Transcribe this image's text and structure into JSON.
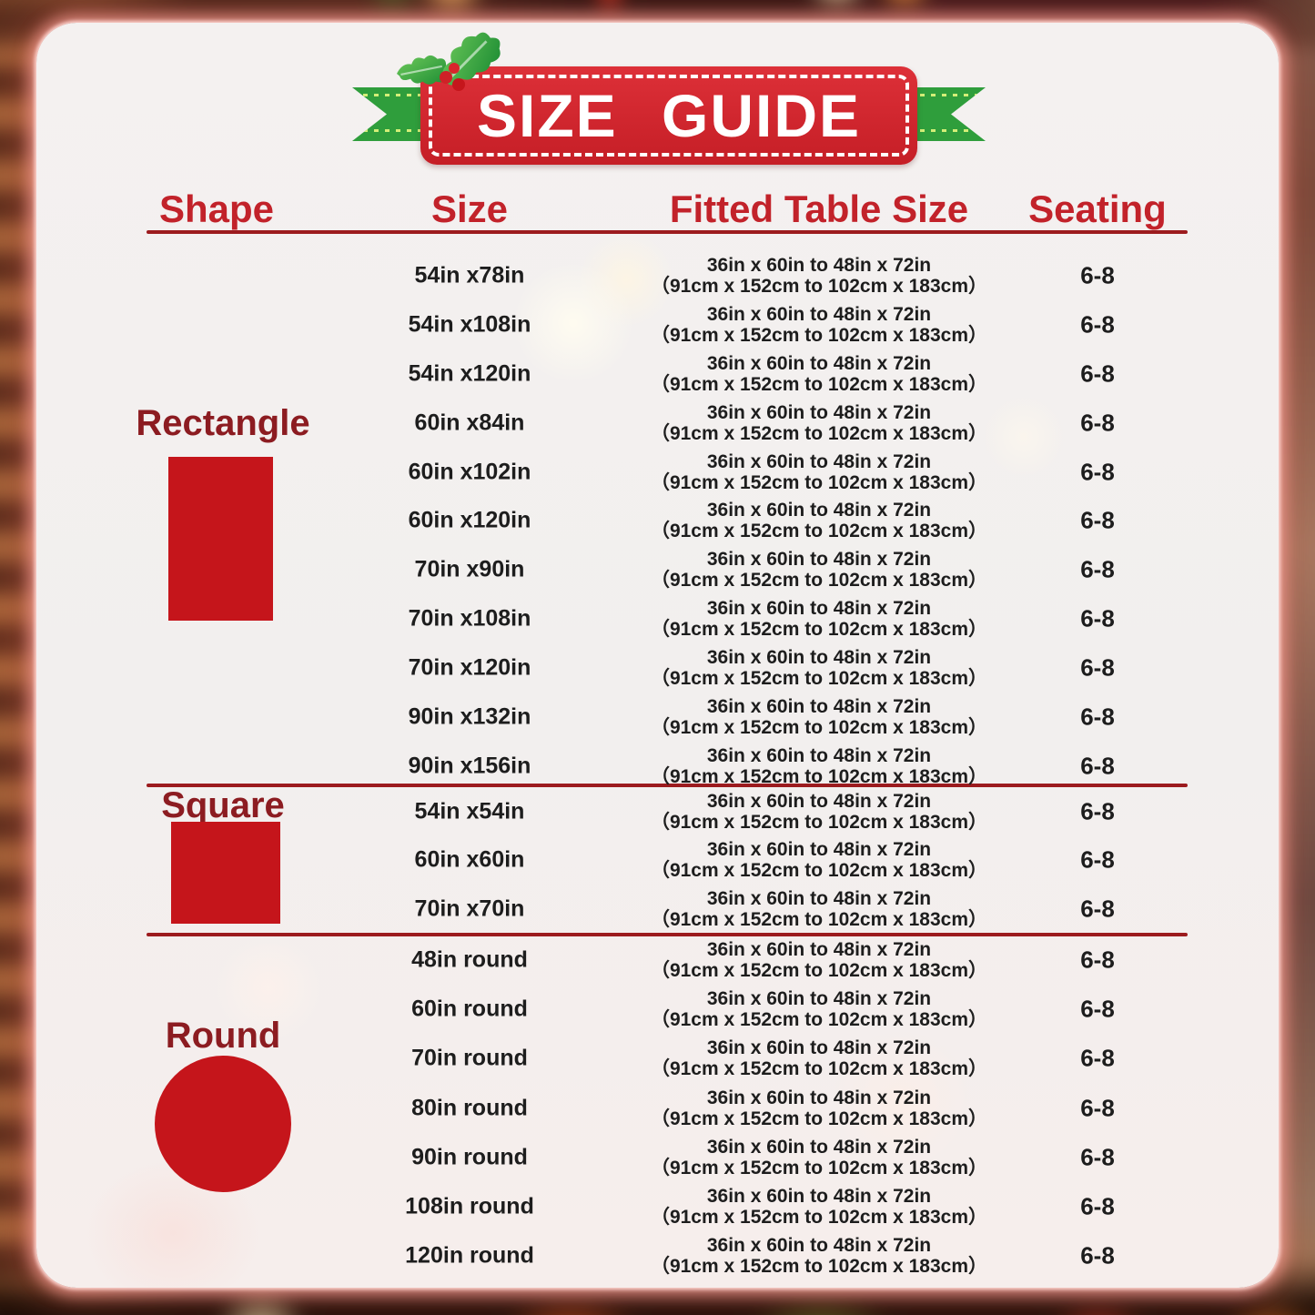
{
  "title": "SIZE GUIDE",
  "columns": [
    "Shape",
    "Size",
    "Fitted Table Size",
    "Seating"
  ],
  "colors": {
    "banner_red": "#d2232a",
    "ribbon_green": "#2f9e3c",
    "header_red": "#c2222a",
    "shape_red": "#c5151b",
    "shape_label_maroon": "#8c1c21",
    "divider_red": "#9c1b1e",
    "row_text": "#1d1d1d"
  },
  "icons": {
    "holly": "holly-icon",
    "rectangle": "rectangle-shape-icon",
    "square": "square-shape-icon",
    "round": "circle-shape-icon"
  },
  "sections": [
    {
      "shape": "Rectangle",
      "icon": "rectangle-shape-icon",
      "rows": [
        {
          "size": "54in x78in",
          "fitted_in": "36in x 60in to 48in x 72in",
          "fitted_cm": "（91cm x 152cm to 102cm x 183cm）",
          "seating": "6-8"
        },
        {
          "size": "54in x108in",
          "fitted_in": "36in x 60in to 48in x 72in",
          "fitted_cm": "（91cm x 152cm to 102cm x 183cm）",
          "seating": "6-8"
        },
        {
          "size": "54in x120in",
          "fitted_in": "36in x 60in to 48in x 72in",
          "fitted_cm": "（91cm x 152cm to 102cm x 183cm）",
          "seating": "6-8"
        },
        {
          "size": "60in x84in",
          "fitted_in": "36in x 60in to 48in x 72in",
          "fitted_cm": "（91cm x 152cm to 102cm x 183cm）",
          "seating": "6-8"
        },
        {
          "size": "60in x102in",
          "fitted_in": "36in x 60in to 48in x 72in",
          "fitted_cm": "（91cm x 152cm to 102cm x 183cm）",
          "seating": "6-8"
        },
        {
          "size": "60in x120in",
          "fitted_in": "36in x 60in to 48in x 72in",
          "fitted_cm": "（91cm x 152cm to 102cm x 183cm）",
          "seating": "6-8"
        },
        {
          "size": "70in x90in",
          "fitted_in": "36in x 60in to 48in x 72in",
          "fitted_cm": "（91cm x 152cm to 102cm x 183cm）",
          "seating": "6-8"
        },
        {
          "size": "70in x108in",
          "fitted_in": "36in x 60in to 48in x 72in",
          "fitted_cm": "（91cm x 152cm to 102cm x 183cm）",
          "seating": "6-8"
        },
        {
          "size": "70in x120in",
          "fitted_in": "36in x 60in to 48in x 72in",
          "fitted_cm": "（91cm x 152cm to 102cm x 183cm）",
          "seating": "6-8"
        },
        {
          "size": "90in x132in",
          "fitted_in": "36in x 60in to 48in x 72in",
          "fitted_cm": "（91cm x 152cm to 102cm x 183cm）",
          "seating": "6-8"
        },
        {
          "size": "90in x156in",
          "fitted_in": "36in x 60in to 48in x 72in",
          "fitted_cm": "（91cm x 152cm to 102cm x 183cm）",
          "seating": "6-8"
        }
      ]
    },
    {
      "shape": "Square",
      "icon": "square-shape-icon",
      "rows": [
        {
          "size": "54in x54in",
          "fitted_in": "36in x 60in to 48in x 72in",
          "fitted_cm": "（91cm x 152cm to 102cm x 183cm）",
          "seating": "6-8"
        },
        {
          "size": "60in x60in",
          "fitted_in": "36in x 60in to 48in x 72in",
          "fitted_cm": "（91cm x 152cm to 102cm x 183cm）",
          "seating": "6-8"
        },
        {
          "size": "70in x70in",
          "fitted_in": "36in x 60in to 48in x 72in",
          "fitted_cm": "（91cm x 152cm to 102cm x 183cm）",
          "seating": "6-8"
        }
      ]
    },
    {
      "shape": "Round",
      "icon": "circle-shape-icon",
      "rows": [
        {
          "size": "48in round",
          "fitted_in": "36in x 60in to 48in x 72in",
          "fitted_cm": "（91cm x 152cm to 102cm x 183cm）",
          "seating": "6-8"
        },
        {
          "size": "60in round",
          "fitted_in": "36in x 60in to 48in x 72in",
          "fitted_cm": "（91cm x 152cm to 102cm x 183cm）",
          "seating": "6-8"
        },
        {
          "size": "70in round",
          "fitted_in": "36in x 60in to 48in x 72in",
          "fitted_cm": "（91cm x 152cm to 102cm x 183cm）",
          "seating": "6-8"
        },
        {
          "size": "80in round",
          "fitted_in": "36in x 60in to 48in x 72in",
          "fitted_cm": "（91cm x 152cm to 102cm x 183cm）",
          "seating": "6-8"
        },
        {
          "size": "90in round",
          "fitted_in": "36in x 60in to 48in x 72in",
          "fitted_cm": "（91cm x 152cm to 102cm x 183cm）",
          "seating": "6-8"
        },
        {
          "size": "108in round",
          "fitted_in": "36in x 60in to 48in x 72in",
          "fitted_cm": "（91cm x 152cm to 102cm x 183cm）",
          "seating": "6-8"
        },
        {
          "size": "120in round",
          "fitted_in": "36in x 60in to 48in x 72in",
          "fitted_cm": "（91cm x 152cm to 102cm x 183cm）",
          "seating": "6-8"
        }
      ]
    }
  ]
}
